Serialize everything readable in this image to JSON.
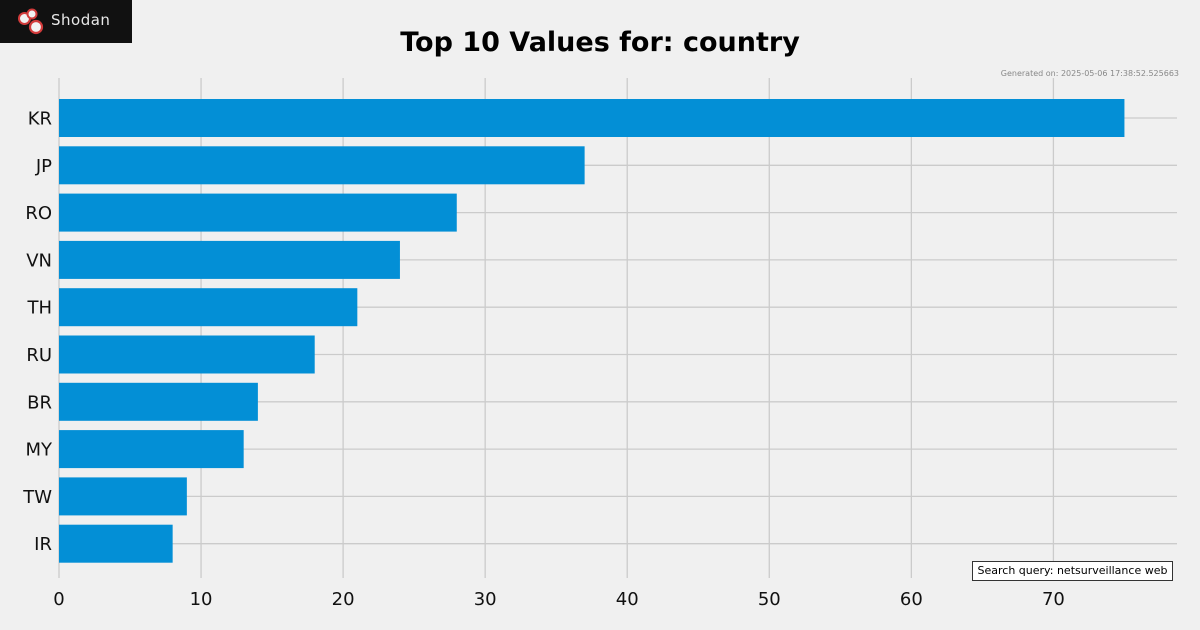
{
  "brand": {
    "name": "Shodan",
    "logo_icon": "shodan-logo-icon"
  },
  "chart_data": {
    "type": "bar",
    "orientation": "horizontal",
    "title": "Top 10 Values for: country",
    "categories": [
      "KR",
      "JP",
      "RO",
      "VN",
      "TH",
      "RU",
      "BR",
      "MY",
      "TW",
      "IR"
    ],
    "values": [
      75,
      37,
      28,
      24,
      21,
      18,
      14,
      13,
      9,
      8
    ],
    "xlim": [
      0,
      78.7
    ],
    "xticks": [
      0,
      10,
      20,
      30,
      40,
      50,
      60,
      70
    ],
    "grid": true,
    "bar_color": "#038fd6",
    "background_color": "#f0f0f0",
    "grid_color": "#cbcbcb"
  },
  "generated_on": "Generated on: 2025-05-06 17:38:52.525663",
  "search_query": "Search query: netsurveillance web"
}
